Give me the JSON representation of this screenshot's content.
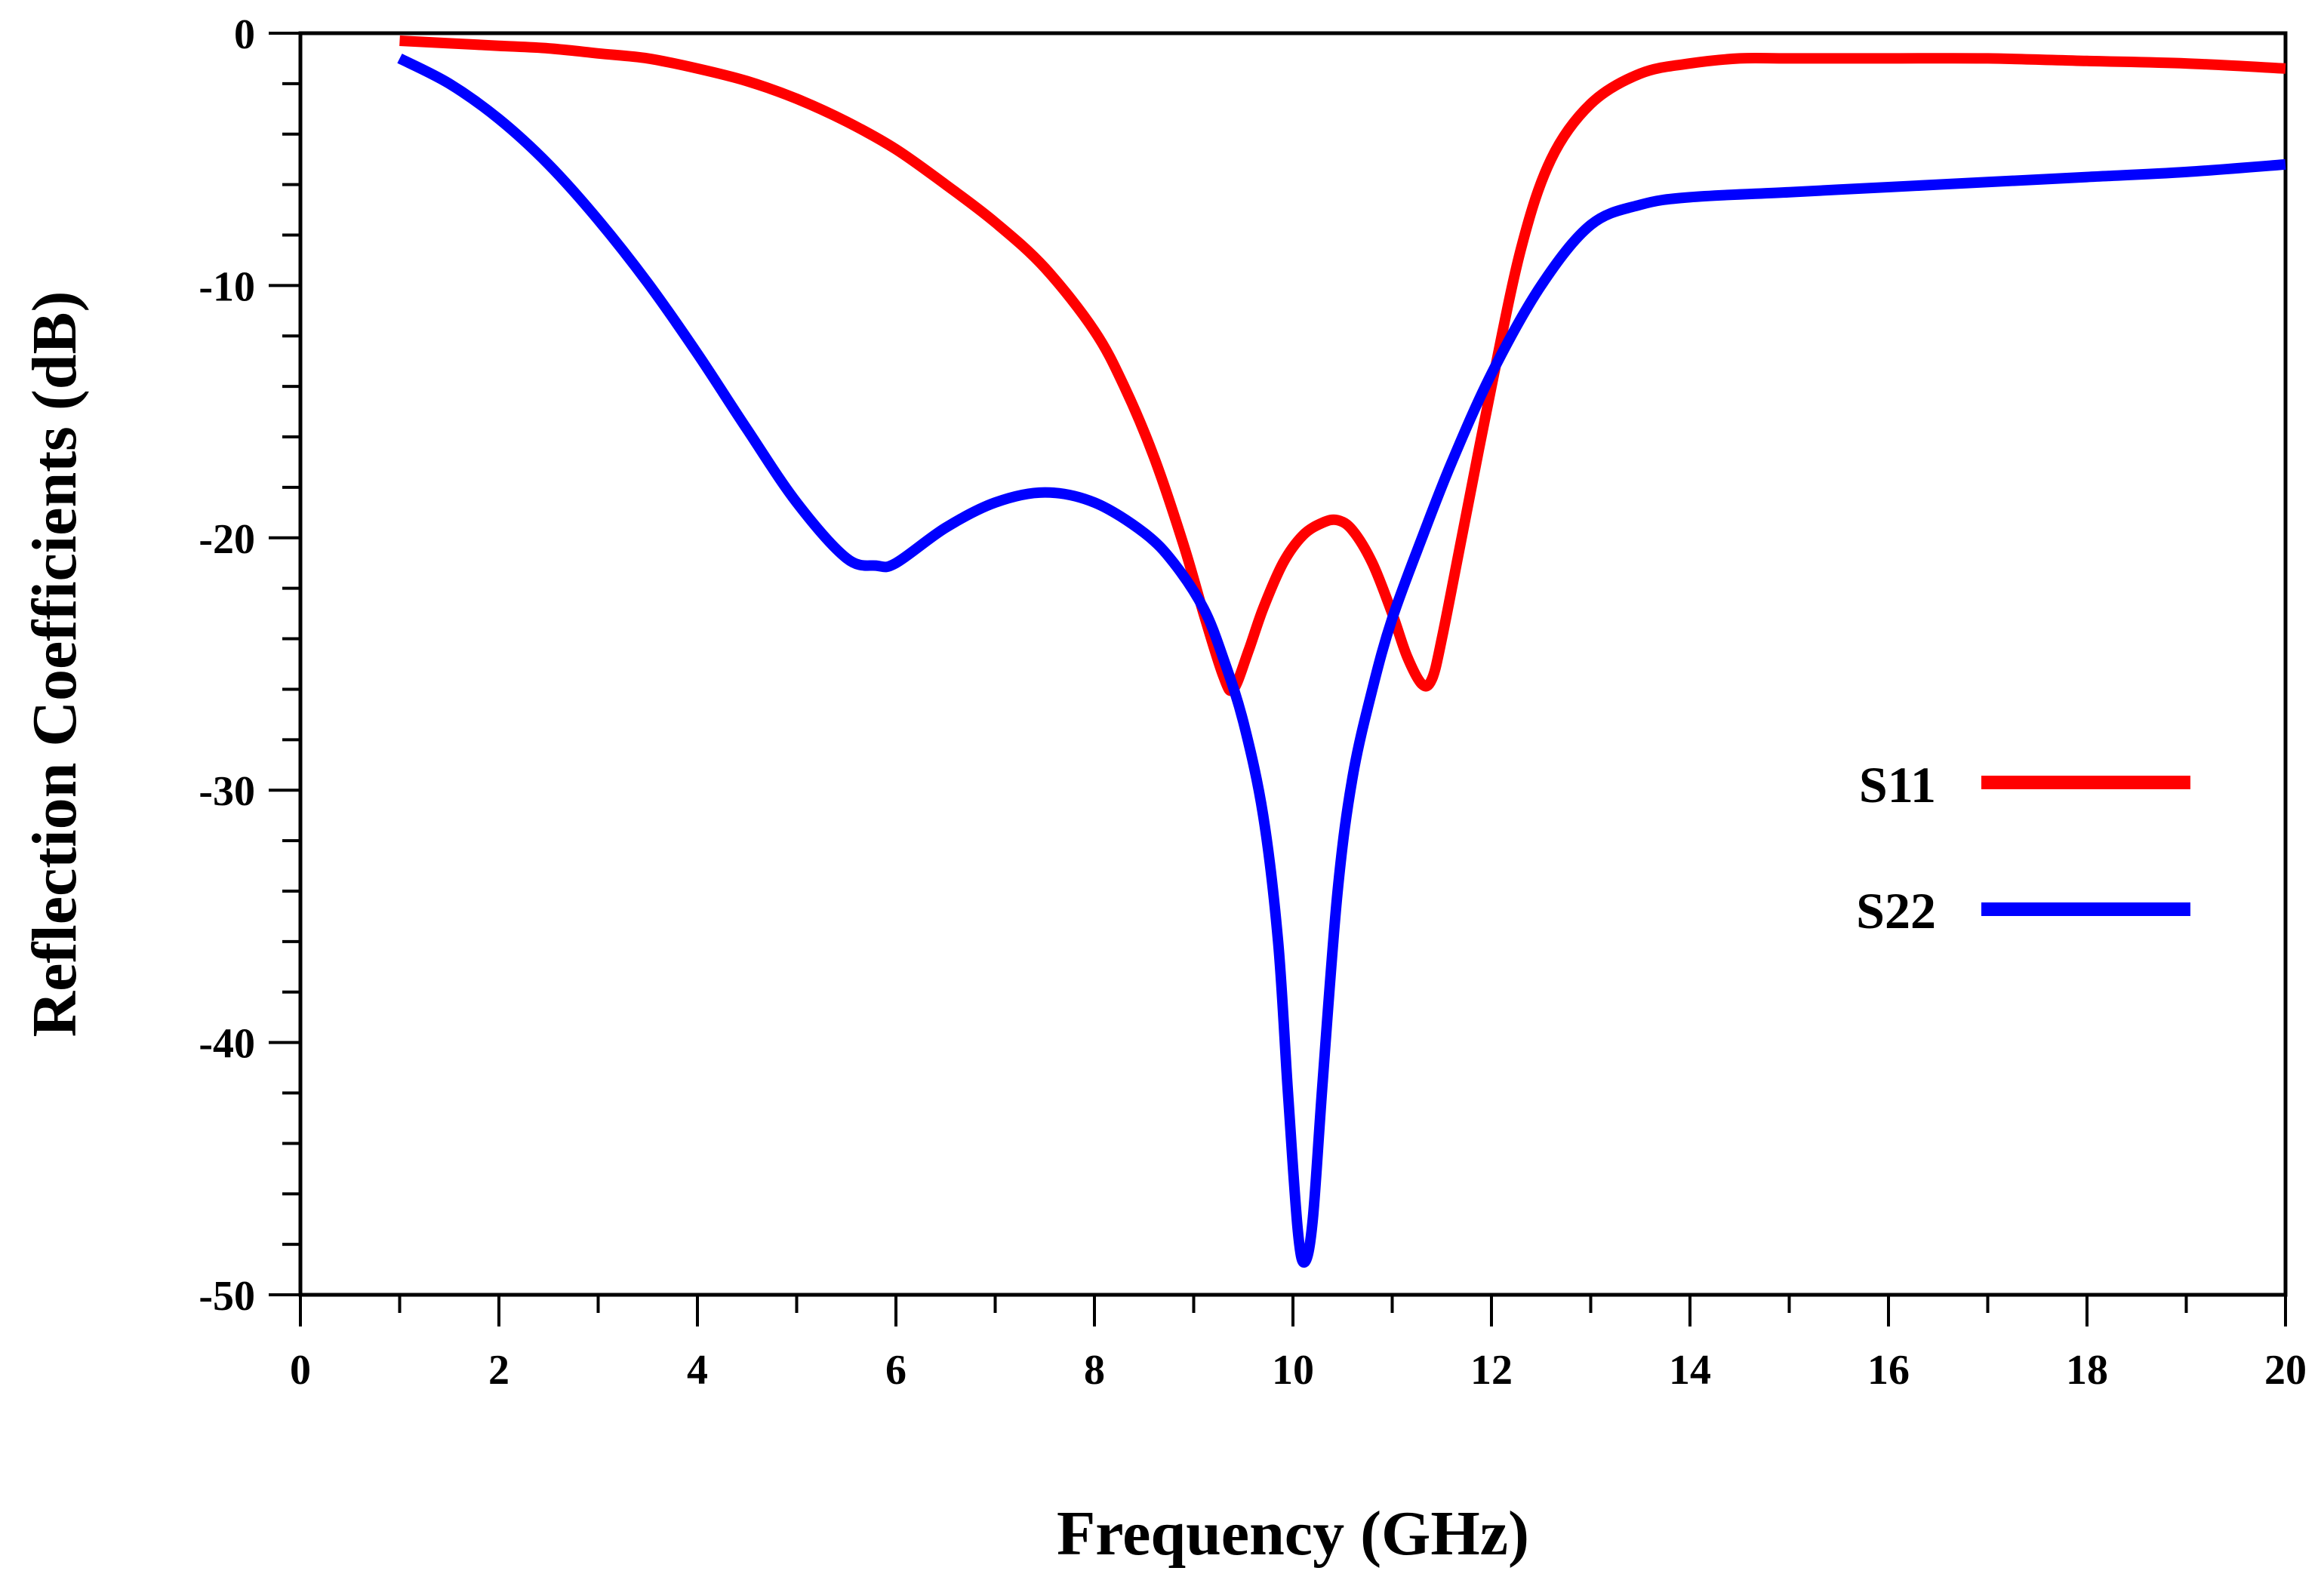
{
  "chart_data": {
    "type": "line",
    "title": "",
    "xlabel": "Frequency (GHz)",
    "ylabel": "Reflection Coefficients (dB)",
    "xlim": [
      0,
      20
    ],
    "ylim": [
      -50,
      0
    ],
    "x_ticks": [
      0,
      2,
      4,
      6,
      8,
      10,
      12,
      14,
      16,
      18,
      20
    ],
    "y_ticks": [
      0,
      -10,
      -20,
      -30,
      -40,
      -50
    ],
    "x_minor_step": 1,
    "y_minor_step": 2,
    "grid": false,
    "legend_position": "right-middle",
    "series": [
      {
        "name": "S11",
        "color": "#ff0000",
        "x": [
          1,
          1.5,
          2,
          2.5,
          3,
          3.5,
          4,
          4.5,
          5,
          5.5,
          6,
          6.5,
          7,
          7.5,
          8,
          8.3,
          8.6,
          8.9,
          9.1,
          9.3,
          9.4,
          9.55,
          9.7,
          9.9,
          10.1,
          10.3,
          10.45,
          10.6,
          10.8,
          11.0,
          11.15,
          11.3,
          11.4,
          11.5,
          11.7,
          12.0,
          12.3,
          12.6,
          13.0,
          13.5,
          14.0,
          14.5,
          15,
          16,
          17,
          18,
          19,
          20
        ],
        "y": [
          -0.3,
          -0.4,
          -0.5,
          -0.6,
          -0.8,
          -1.0,
          -1.4,
          -1.9,
          -2.6,
          -3.5,
          -4.6,
          -6.0,
          -7.5,
          -9.3,
          -11.8,
          -14.0,
          -16.8,
          -20.3,
          -23.0,
          -25.5,
          -26.0,
          -24.5,
          -22.8,
          -21.0,
          -19.9,
          -19.4,
          -19.3,
          -19.7,
          -21.0,
          -23.0,
          -24.7,
          -25.8,
          -25.6,
          -24.0,
          -20.0,
          -14.0,
          -8.5,
          -5.0,
          -2.8,
          -1.6,
          -1.2,
          -1.0,
          -1.0,
          -1.0,
          -1.0,
          -1.1,
          -1.2,
          -1.4
        ]
      },
      {
        "name": "S22",
        "color": "#0000ff",
        "x": [
          1,
          1.5,
          2,
          2.5,
          3,
          3.5,
          4,
          4.5,
          5,
          5.5,
          5.8,
          6.0,
          6.5,
          7.0,
          7.5,
          8.0,
          8.5,
          8.8,
          9.1,
          9.3,
          9.5,
          9.7,
          9.85,
          9.95,
          10.05,
          10.12,
          10.2,
          10.3,
          10.45,
          10.6,
          10.8,
          11.0,
          11.3,
          11.6,
          12.0,
          12.5,
          13.0,
          13.5,
          14.0,
          15,
          16,
          17,
          18,
          19,
          20
        ],
        "y": [
          -1.0,
          -2.0,
          -3.4,
          -5.2,
          -7.4,
          -9.9,
          -12.7,
          -15.7,
          -18.6,
          -20.8,
          -21.1,
          -21.0,
          -19.6,
          -18.6,
          -18.2,
          -18.6,
          -19.8,
          -21.0,
          -22.8,
          -24.8,
          -27.3,
          -31.0,
          -36.0,
          -42.0,
          -47.5,
          -48.7,
          -47.0,
          -41.5,
          -34.0,
          -29.5,
          -26.0,
          -23.2,
          -20.0,
          -17.0,
          -13.5,
          -10.0,
          -7.6,
          -6.8,
          -6.5,
          -6.3,
          -6.1,
          -5.9,
          -5.7,
          -5.5,
          -5.2
        ]
      }
    ]
  }
}
